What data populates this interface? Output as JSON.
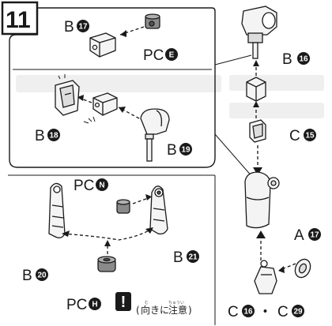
{
  "step": {
    "number": "11"
  },
  "labels": {
    "b17": {
      "letter": "B",
      "num": "17"
    },
    "pce": {
      "letter": "PC",
      "num": "E"
    },
    "b18": {
      "letter": "B",
      "num": "18"
    },
    "b19": {
      "letter": "B",
      "num": "19"
    },
    "b16": {
      "letter": "B",
      "num": "16"
    },
    "c15": {
      "letter": "C",
      "num": "15"
    },
    "pcn": {
      "letter": "PC",
      "num": "N"
    },
    "b20": {
      "letter": "B",
      "num": "20"
    },
    "b21": {
      "letter": "B",
      "num": "21"
    },
    "pch": {
      "letter": "PC",
      "num": "H"
    },
    "a17": {
      "letter": "A",
      "num": "17"
    },
    "c16": {
      "letter": "C",
      "num": "16"
    },
    "dot": "・",
    "c29": {
      "letter": "C",
      "num": "29"
    }
  },
  "caution": {
    "mark": "!",
    "open": "(",
    "t1": "向",
    "t2": "きに",
    "t3": "注意",
    "close": ")",
    "ruby1": "む",
    "ruby2": "ちゅうい"
  },
  "colors": {
    "ink": "#1a1a1a",
    "part_fill": "#f4f4f4",
    "pc_fill": "#8a8a8a",
    "panel_fill": "#f2f2f2"
  }
}
